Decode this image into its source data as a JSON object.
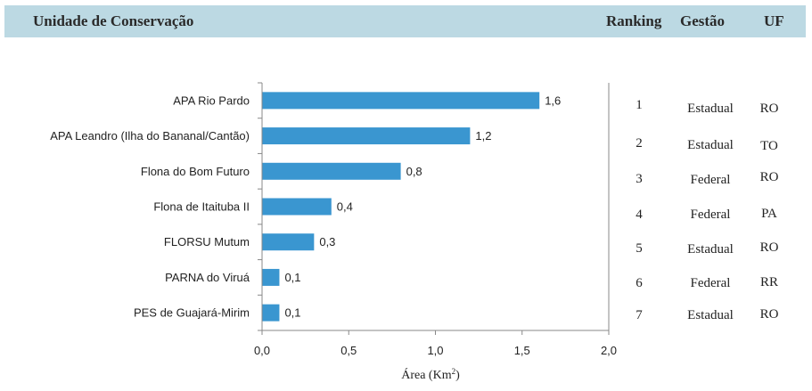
{
  "header": {
    "title": "Unidade de Conservação",
    "ranking": "Ranking",
    "gestao": "Gestão",
    "uf": "UF"
  },
  "chart_data": {
    "type": "bar",
    "orientation": "horizontal",
    "categories": [
      "APA Rio Pardo",
      "APA Leandro (Ilha do Bananal/Cantão)",
      "Flona do Bom Futuro",
      "Flona de Itaituba II",
      "FLORSU Mutum",
      "PARNA do Viruá",
      "PES de Guajará-Mirim"
    ],
    "values": [
      1.6,
      1.2,
      0.8,
      0.4,
      0.3,
      0.1,
      0.1
    ],
    "value_labels": [
      "1,6",
      "1,2",
      "0,8",
      "0,4",
      "0,3",
      "0,1",
      "0,1"
    ],
    "x_ticks": [
      0,
      0.5,
      1.0,
      1.5,
      2.0
    ],
    "x_tick_labels": [
      "0,0",
      "0,5",
      "1,0",
      "1,5",
      "2,0"
    ],
    "xlim": [
      0,
      2.0
    ],
    "xlabel": "Área (Km",
    "xlabel_sup": "2",
    "xlabel_suffix": ")",
    "bar_color": "#3a96d0",
    "grid": false,
    "legend": "none"
  },
  "table": {
    "rows": [
      {
        "ranking": "1",
        "gestao": "Estadual",
        "uf": "RO"
      },
      {
        "ranking": "2",
        "gestao": "Estadual",
        "uf": "TO"
      },
      {
        "ranking": "3",
        "gestao": "Federal",
        "uf": "RO"
      },
      {
        "ranking": "4",
        "gestao": "Federal",
        "uf": "PA"
      },
      {
        "ranking": "5",
        "gestao": "Estadual",
        "uf": "RO"
      },
      {
        "ranking": "6",
        "gestao": "Federal",
        "uf": "RR"
      },
      {
        "ranking": "7",
        "gestao": "Estadual",
        "uf": "RO"
      }
    ]
  },
  "colors": {
    "header_bg": "#bcd9e3",
    "axis": "#888888"
  }
}
